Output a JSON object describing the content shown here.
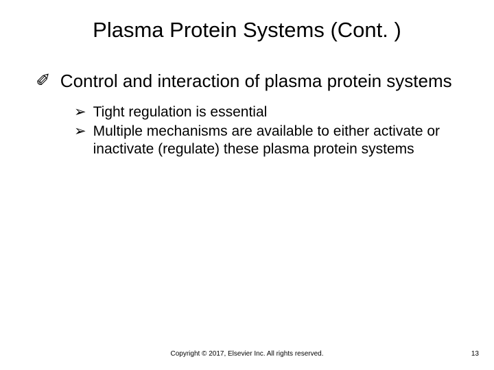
{
  "title": "Plasma Protein Systems (Cont. )",
  "content": {
    "level1": {
      "bullet": "✐",
      "text": "Control and interaction of plasma protein systems"
    },
    "level2": [
      {
        "bullet": "➢",
        "text": "Tight regulation is essential"
      },
      {
        "bullet": "➢",
        "text": "Multiple mechanisms are available to either activate or inactivate (regulate) these plasma protein systems"
      }
    ]
  },
  "footer": "Copyright © 2017, Elsevier Inc. All rights reserved.",
  "page_number": "13",
  "colors": {
    "background": "#ffffff",
    "text": "#000000"
  },
  "typography": {
    "title_fontsize": 31,
    "level1_fontsize": 26,
    "level2_fontsize": 21,
    "footer_fontsize": 10
  }
}
